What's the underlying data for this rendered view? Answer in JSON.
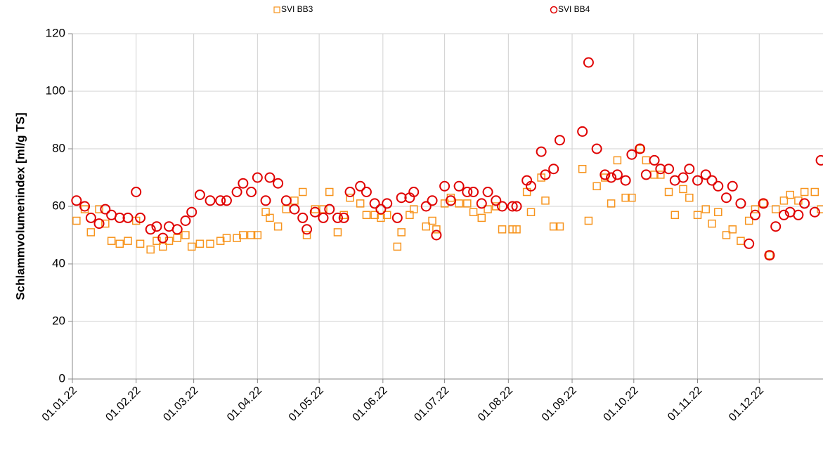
{
  "chart_data": {
    "type": "scatter",
    "y_label": "Schlammvolumenindex [ml/g TS]",
    "x": [
      "03.01.22",
      "07.01.22",
      "10.01.22",
      "14.01.22",
      "17.01.22",
      "20.01.22",
      "24.01.22",
      "28.01.22",
      "01.02.22",
      "03.02.22",
      "08.02.22",
      "11.02.22",
      "14.02.22",
      "17.02.22",
      "21.02.22",
      "25.02.22",
      "28.02.22",
      "04.03.22",
      "09.03.22",
      "14.03.22",
      "17.03.22",
      "22.03.22",
      "25.03.22",
      "29.03.22",
      "01.04.22",
      "05.04.22",
      "07.04.22",
      "11.04.22",
      "15.04.22",
      "19.04.22",
      "23.04.22",
      "25.04.22",
      "29.04.22",
      "03.05.22",
      "06.05.22",
      "10.05.22",
      "13.05.22",
      "16.05.22",
      "21.05.22",
      "24.05.22",
      "28.05.22",
      "31.05.22",
      "03.06.22",
      "08.06.22",
      "10.06.22",
      "14.06.22",
      "16.06.22",
      "22.06.22",
      "25.06.22",
      "27.06.22",
      "01.07.22",
      "04.07.22",
      "08.07.22",
      "12.07.22",
      "15.07.22",
      "19.07.22",
      "22.07.22",
      "26.07.22",
      "29.07.22",
      "03.08.22",
      "05.08.22",
      "10.08.22",
      "12.08.22",
      "17.08.22",
      "19.08.22",
      "23.08.22",
      "26.08.22",
      "06.09.22",
      "09.09.22",
      "13.09.22",
      "17.09.22",
      "20.09.22",
      "23.09.22",
      "27.09.22",
      "30.09.22",
      "04.10.22",
      "07.10.22",
      "11.10.22",
      "14.10.22",
      "18.10.22",
      "21.10.22",
      "25.10.22",
      "28.10.22",
      "01.11.22",
      "05.11.22",
      "08.11.22",
      "11.11.22",
      "15.11.22",
      "18.11.22",
      "22.11.22",
      "26.11.22",
      "29.11.22",
      "03.12.22",
      "06.12.22",
      "09.12.22",
      "13.12.22",
      "16.12.22",
      "20.12.22",
      "23.12.22",
      "28.12.22",
      "31.12.22"
    ],
    "series": [
      {
        "name": "SVI BB3",
        "color": "#f7941d",
        "marker": "square",
        "values": [
          55,
          59,
          51,
          59,
          54,
          48,
          47,
          48,
          55,
          47,
          45,
          48,
          46,
          48,
          49,
          50,
          46,
          47,
          47,
          48,
          49,
          49,
          50,
          50,
          50,
          58,
          56,
          53,
          59,
          62,
          65,
          50,
          59,
          59,
          65,
          51,
          57,
          63,
          61,
          57,
          57,
          56,
          57,
          46,
          51,
          57,
          59,
          53,
          55,
          52,
          61,
          63,
          61,
          61,
          58,
          56,
          59,
          60,
          52,
          52,
          52,
          65,
          58,
          70,
          62,
          53,
          53,
          73,
          55,
          67,
          70,
          61,
          76,
          63,
          63,
          80,
          76,
          71,
          71,
          65,
          57,
          66,
          63,
          57,
          59,
          54,
          58,
          50,
          52,
          48,
          55,
          59,
          61,
          43,
          59,
          62,
          64,
          62,
          65,
          65,
          59
        ]
      },
      {
        "name": "SVI BB4",
        "color": "#e00000",
        "marker": "circle",
        "values": [
          62,
          60,
          56,
          54,
          59,
          57,
          56,
          56,
          65,
          56,
          52,
          53,
          49,
          53,
          52,
          55,
          58,
          64,
          62,
          62,
          62,
          65,
          68,
          65,
          70,
          62,
          70,
          68,
          62,
          59,
          56,
          52,
          58,
          56,
          59,
          56,
          56,
          65,
          67,
          65,
          61,
          59,
          61,
          56,
          63,
          63,
          65,
          60,
          62,
          50,
          67,
          62,
          67,
          65,
          65,
          61,
          65,
          62,
          60,
          60,
          60,
          69,
          67,
          79,
          71,
          73,
          83,
          86,
          110,
          80,
          71,
          70,
          71,
          69,
          78,
          80,
          71,
          76,
          73,
          73,
          69,
          70,
          73,
          69,
          71,
          69,
          67,
          63,
          67,
          61,
          47,
          57,
          61,
          43,
          53,
          57,
          58,
          57,
          61,
          58,
          76
        ]
      }
    ],
    "xlim": [
      "01.01.22",
      "01.01.23"
    ],
    "xticks": [
      "01.01.22",
      "01.02.22",
      "01.03.22",
      "01.04.22",
      "01.05.22",
      "01.06.22",
      "01.07.22",
      "01.08.22",
      "01.09.22",
      "01.10.22",
      "01.11.22",
      "01.12.22"
    ],
    "ylim": [
      0,
      120
    ],
    "yticks": [
      0,
      20,
      40,
      60,
      80,
      100,
      120
    ],
    "grid": true,
    "legend": "top"
  }
}
